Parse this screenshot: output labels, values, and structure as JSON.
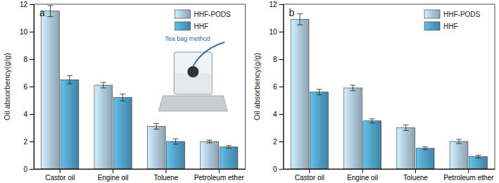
{
  "chart_data": [
    {
      "type": "bar",
      "title": "a",
      "y_label": "Oil absorbency(g/g)",
      "categories": [
        "Castor oil",
        "Engine oil",
        "Toluene",
        "Petroleum ether"
      ],
      "series": [
        {
          "name": "HHF-PODS",
          "color": "#a9c3d4",
          "values": [
            11.5,
            6.1,
            3.1,
            2.0
          ],
          "errors": [
            0.4,
            0.2,
            0.2,
            0.1
          ]
        },
        {
          "name": "HHF",
          "color": "#4f9dc2",
          "values": [
            6.5,
            5.2,
            2.0,
            1.6
          ],
          "errors": [
            0.3,
            0.25,
            0.2,
            0.1
          ]
        }
      ],
      "ylim": [
        0,
        12
      ],
      "yticks": [
        0,
        2,
        4,
        6,
        8,
        10,
        12
      ],
      "grid": false,
      "legend": "upper right",
      "annotations": [
        {
          "text": "Tea bag method"
        }
      ]
    },
    {
      "type": "bar",
      "title": "b",
      "y_label": "Oil absorbency(g/g)",
      "categories": [
        "Castor oil",
        "Engine oil",
        "Toluene",
        "Petroleum ether"
      ],
      "series": [
        {
          "name": "HHF-PODS",
          "color": "#a9c3d4",
          "values": [
            10.9,
            5.9,
            3.0,
            2.0
          ],
          "errors": [
            0.4,
            0.2,
            0.2,
            0.15
          ]
        },
        {
          "name": "HHF",
          "color": "#4f9dc2",
          "values": [
            5.6,
            3.5,
            1.5,
            0.9
          ],
          "errors": [
            0.2,
            0.15,
            0.1,
            0.1
          ]
        }
      ],
      "ylim": [
        0,
        12
      ],
      "yticks": [
        0,
        2,
        4,
        6,
        8,
        10,
        12
      ],
      "grid": false,
      "legend": "upper right"
    }
  ]
}
